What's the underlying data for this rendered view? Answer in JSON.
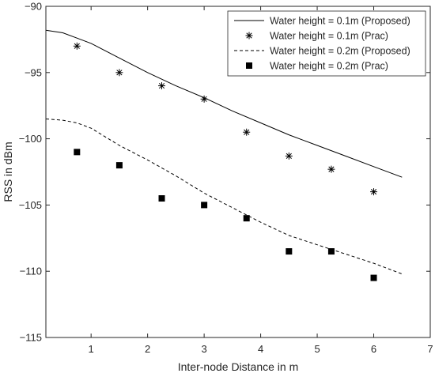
{
  "chart_data": {
    "type": "line",
    "title": "",
    "xlabel": "Inter-node Distance in m",
    "ylabel": "RSS in dBm",
    "xlim": [
      0.2,
      7
    ],
    "ylim": [
      -115,
      -90
    ],
    "xticks": [
      1,
      2,
      3,
      4,
      5,
      6,
      7
    ],
    "yticks": [
      -90,
      -95,
      -100,
      -105,
      -110,
      -115
    ],
    "xtick_labels": [
      "1",
      "2",
      "3",
      "4",
      "5",
      "6",
      "7"
    ],
    "ytick_labels": [
      "−90",
      "−95",
      "−100",
      "−105",
      "−110",
      "−115"
    ],
    "grid": false,
    "legend_position": "top-right",
    "colors": {
      "series": "#000000",
      "axis": "#262626",
      "background": "#ffffff"
    },
    "series": [
      {
        "name": "Water height = 0.1m (Proposed)",
        "style": "solid-line",
        "x": [
          0.2,
          0.5,
          0.75,
          1.0,
          1.5,
          2.0,
          2.5,
          3.0,
          3.5,
          4.0,
          4.5,
          5.0,
          5.5,
          6.0,
          6.5
        ],
        "y": [
          -91.8,
          -92.0,
          -92.4,
          -92.8,
          -93.9,
          -95.0,
          -96.0,
          -96.9,
          -97.9,
          -98.8,
          -99.7,
          -100.5,
          -101.3,
          -102.1,
          -102.9
        ]
      },
      {
        "name": "Water height = 0.1m (Prac)",
        "style": "asterisk-marker",
        "x": [
          0.75,
          1.5,
          2.25,
          3.0,
          3.75,
          4.5,
          5.25,
          6.0
        ],
        "y": [
          -93.0,
          -95.0,
          -96.0,
          -97.0,
          -99.5,
          -101.3,
          -102.3,
          -104.0
        ]
      },
      {
        "name": "Water height = 0.2m (Proposed)",
        "style": "dashed-line",
        "x": [
          0.2,
          0.5,
          0.75,
          1.0,
          1.5,
          2.0,
          2.5,
          3.0,
          3.5,
          4.0,
          4.5,
          5.0,
          5.5,
          6.0,
          6.5
        ],
        "y": [
          -98.5,
          -98.6,
          -98.8,
          -99.2,
          -100.5,
          -101.6,
          -102.8,
          -104.1,
          -105.2,
          -106.3,
          -107.3,
          -108.0,
          -108.7,
          -109.4,
          -110.2
        ]
      },
      {
        "name": "Water height = 0.2m (Prac)",
        "style": "square-marker",
        "x": [
          0.75,
          1.5,
          2.25,
          3.0,
          3.75,
          4.5,
          5.25,
          6.0
        ],
        "y": [
          -101.0,
          -102.0,
          -104.5,
          -105.0,
          -106.0,
          -108.5,
          -108.5,
          -110.5
        ]
      }
    ]
  }
}
